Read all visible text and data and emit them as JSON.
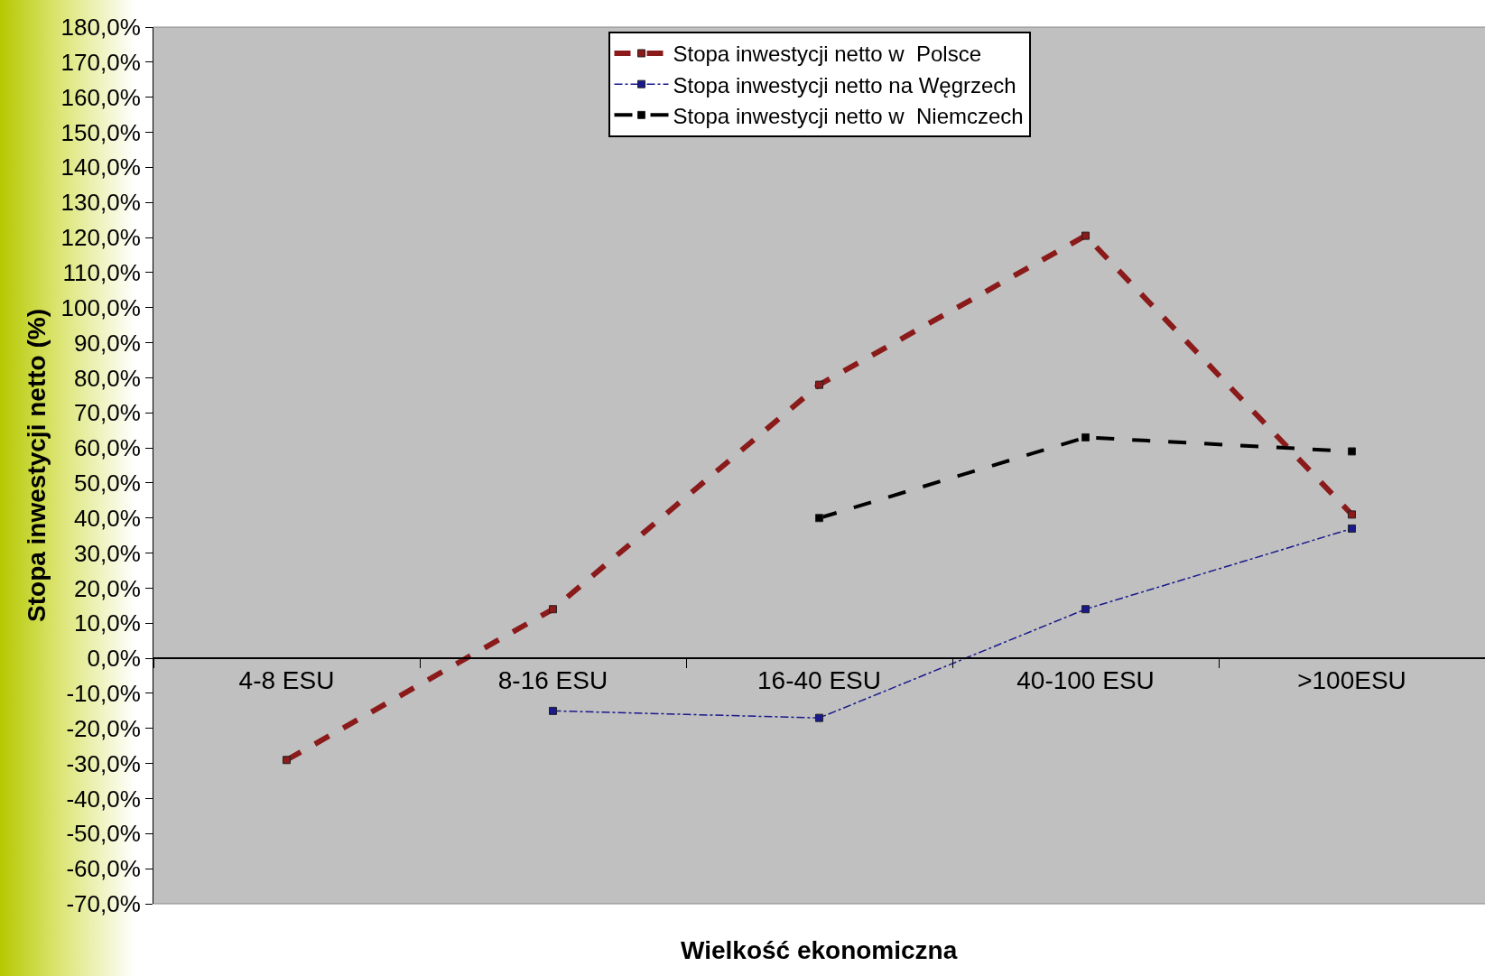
{
  "chart_data": {
    "type": "line",
    "xlabel": "Wielkość ekonomiczna",
    "ylabel": "Stopa inwestycji netto (%)",
    "categories": [
      "4-8 ESU",
      "8-16 ESU",
      "16-40 ESU",
      "40-100 ESU",
      ">100ESU"
    ],
    "series": [
      {
        "name": "Stopa inwestycji netto w  Polsce",
        "color": "#8b1a1a",
        "line_style": "dashed",
        "values": [
          -29,
          14,
          78,
          120.5,
          41
        ]
      },
      {
        "name": "Stopa inwestycji netto na Węgrzech",
        "color": "#1a1a8c",
        "line_style": "dashed",
        "values": [
          null,
          -15,
          -17,
          14,
          37
        ]
      },
      {
        "name": "Stopa inwestycji netto w  Niemczech",
        "color": "#000000",
        "line_style": "dashed",
        "values": [
          null,
          null,
          40,
          63,
          59
        ]
      }
    ],
    "ylim": [
      -70,
      180
    ],
    "yticks": [
      {
        "value": -70,
        "label": "-70,0%"
      },
      {
        "value": -60,
        "label": "-60,0%"
      },
      {
        "value": -50,
        "label": "-50,0%"
      },
      {
        "value": -40,
        "label": "-40,0%"
      },
      {
        "value": -30,
        "label": "-30,0%"
      },
      {
        "value": -20,
        "label": "-20,0%"
      },
      {
        "value": -10,
        "label": "-10,0%"
      },
      {
        "value": 0,
        "label": "0,0%"
      },
      {
        "value": 10,
        "label": "10,0%"
      },
      {
        "value": 20,
        "label": "20,0%"
      },
      {
        "value": 30,
        "label": "30,0%"
      },
      {
        "value": 40,
        "label": "40,0%"
      },
      {
        "value": 50,
        "label": "50,0%"
      },
      {
        "value": 60,
        "label": "60,0%"
      },
      {
        "value": 70,
        "label": "70,0%"
      },
      {
        "value": 80,
        "label": "80,0%"
      },
      {
        "value": 90,
        "label": "90,0%"
      },
      {
        "value": 100,
        "label": "100,0%"
      },
      {
        "value": 110,
        "label": "110,0%"
      },
      {
        "value": 120,
        "label": "120,0%"
      },
      {
        "value": 130,
        "label": "130,0%"
      },
      {
        "value": 140,
        "label": "140,0%"
      },
      {
        "value": 150,
        "label": "150,0%"
      },
      {
        "value": 160,
        "label": "160,0%"
      },
      {
        "value": 170,
        "label": "170,0%"
      },
      {
        "value": 180,
        "label": "180,0%"
      }
    ],
    "grid": false,
    "legend": "top",
    "marker": "square"
  }
}
